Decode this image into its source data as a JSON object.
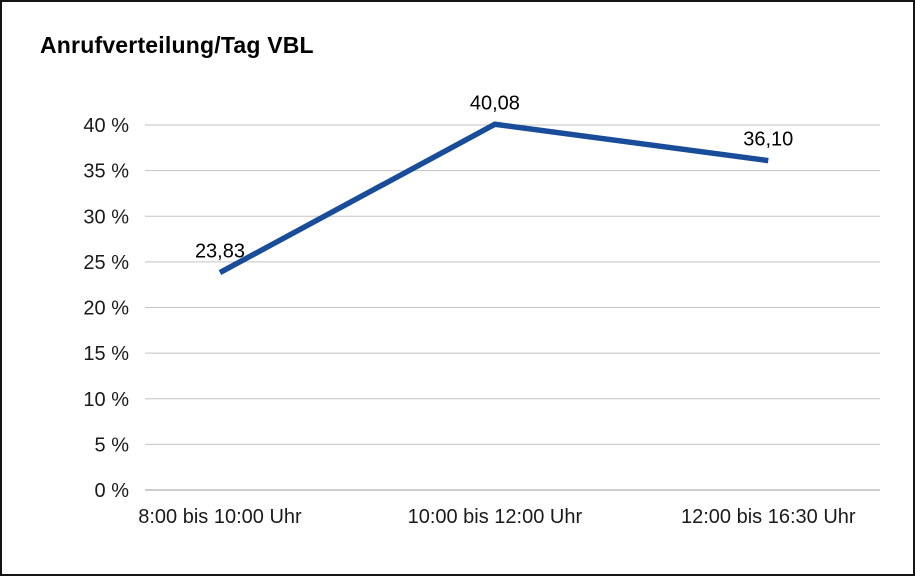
{
  "chart_data": {
    "type": "line",
    "title": "Anrufverteilung/Tag VBL",
    "categories": [
      "8:00 bis 10:00 Uhr",
      "10:00 bis 12:00 Uhr",
      "12:00 bis 16:30 Uhr"
    ],
    "values": [
      23.83,
      40.08,
      36.1
    ],
    "value_labels": [
      "23,83",
      "40,08",
      "36,10"
    ],
    "xlabel": "",
    "ylabel": "",
    "ylim": [
      0,
      40
    ],
    "ytick_step": 5,
    "ytick_labels": [
      "0 %",
      "5 %",
      "10 %",
      "15 %",
      "20 %",
      "25 %",
      "30 %",
      "35 %",
      "40 %"
    ],
    "grid": true,
    "legend": "none",
    "colors": {
      "line": "#1A4D99",
      "grid": "#c3c3c3",
      "zero_line": "#999999",
      "text": "#1a1a1a",
      "background": "#ffffff"
    }
  }
}
